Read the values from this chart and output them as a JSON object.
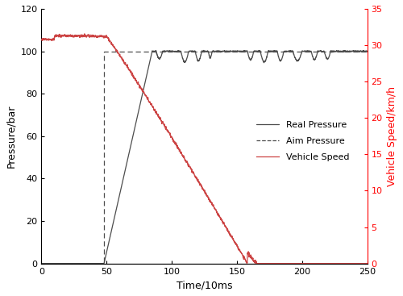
{
  "title": "",
  "xlabel": "Time/10ms",
  "ylabel_left": "Pressure/bar",
  "ylabel_right": "Vehicle Speed/km/h",
  "xlim": [
    0,
    250
  ],
  "ylim_left": [
    0,
    120
  ],
  "ylim_right": [
    0,
    35
  ],
  "yticks_left": [
    0,
    20,
    40,
    60,
    80,
    100,
    120
  ],
  "yticks_right": [
    0,
    5,
    10,
    15,
    20,
    25,
    30,
    35
  ],
  "xticks": [
    0,
    50,
    100,
    150,
    200,
    250
  ],
  "colors": {
    "real_pressure": "#4d4d4d",
    "aim_pressure": "#4d4d4d",
    "vehicle_speed": "#cc4444"
  },
  "legend_labels": [
    "Real Pressure",
    "Aim Pressure",
    "Vehicle Speed"
  ],
  "figsize": [
    5.0,
    3.67
  ],
  "dpi": 100,
  "real_pressure_rise_start": 48,
  "real_pressure_rise_end": 85,
  "aim_step_x": 48,
  "speed_start_val": 31.2,
  "speed_flat_end": 50,
  "speed_zero_start": 158,
  "speed_wiggle_end": 165
}
